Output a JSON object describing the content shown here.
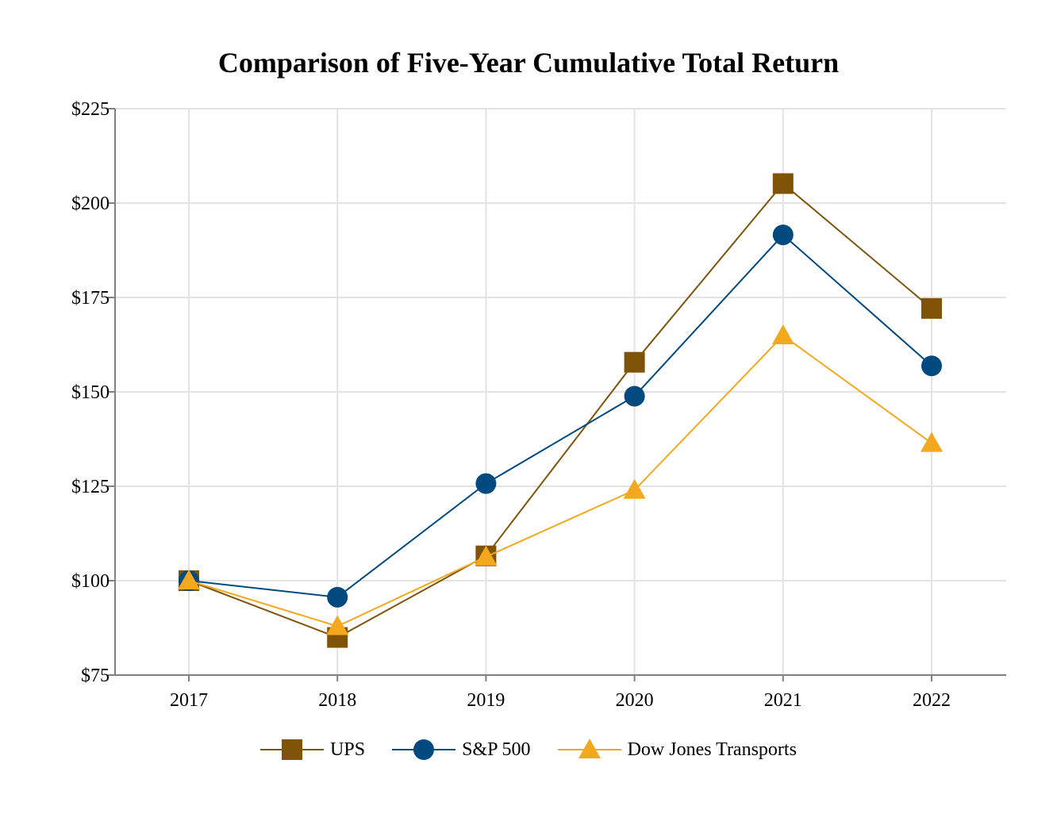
{
  "chart_data": {
    "type": "line",
    "title": "Comparison of Five-Year Cumulative Total Return",
    "xlabel": "",
    "ylabel": "",
    "categories": [
      "2017",
      "2018",
      "2019",
      "2020",
      "2021",
      "2022"
    ],
    "ylim": [
      75,
      225
    ],
    "yticks": [
      75,
      100,
      125,
      150,
      175,
      200,
      225
    ],
    "ytick_labels": [
      "$75",
      "$100",
      "$125",
      "$150",
      "$175",
      "$200",
      "$225"
    ],
    "grid": true,
    "legend_position": "bottom-center",
    "series": [
      {
        "name": "UPS",
        "marker": "square",
        "color": "#7f5409",
        "values": [
          100.0,
          84.96,
          106.57,
          157.84,
          205.16,
          172.09
        ]
      },
      {
        "name": "S&P 500",
        "marker": "circle",
        "color": "#004a7f",
        "values": [
          100.0,
          95.62,
          125.72,
          148.85,
          191.58,
          156.89
        ]
      },
      {
        "name": "Dow Jones Transports",
        "marker": "triangle",
        "color": "#f4a81d",
        "values": [
          100.0,
          87.93,
          106.32,
          124.0,
          164.91,
          136.42
        ]
      }
    ]
  }
}
